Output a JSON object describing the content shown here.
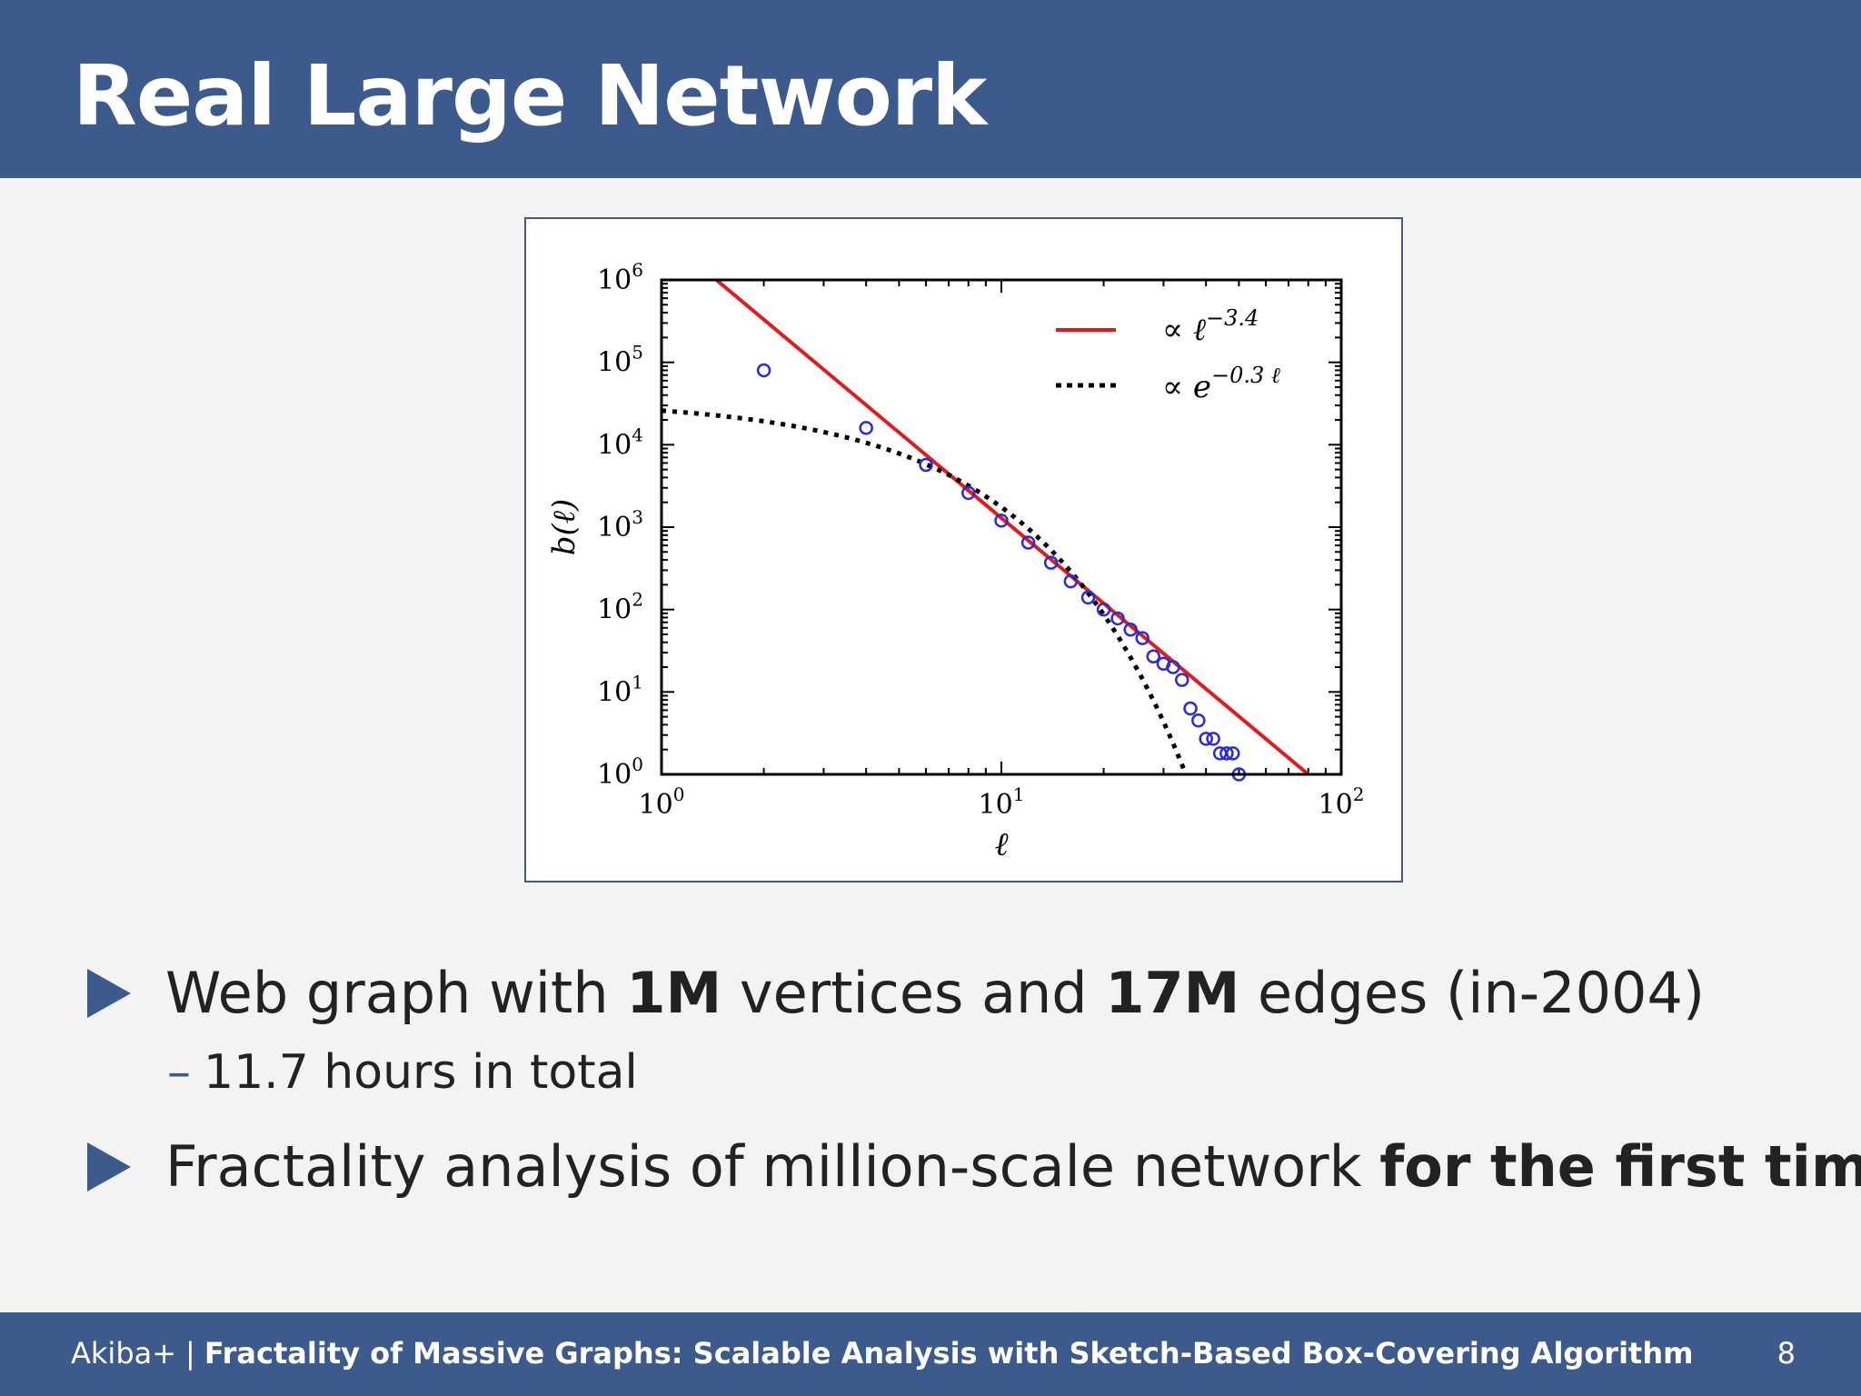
{
  "slide": {
    "title": "Real Large Network",
    "bullets": [
      {
        "segments": [
          {
            "text": "Web graph with ",
            "bold": false
          },
          {
            "text": "1M",
            "bold": true
          },
          {
            "text": " vertices and ",
            "bold": false
          },
          {
            "text": "17M",
            "bold": true
          },
          {
            "text": " edges (in-2004)",
            "bold": false
          }
        ],
        "sub": "11.7 hours in total"
      },
      {
        "segments": [
          {
            "text": "Fractality analysis of million-scale network ",
            "bold": false
          },
          {
            "text": "for the first time",
            "bold": true
          }
        ]
      }
    ],
    "sub_dash": "–"
  },
  "footer": {
    "author": "Akiba+",
    "separator": "|",
    "paper_title": "Fractality of Massive Graphs: Scalable Analysis with Sketch-Based Box-Covering Algorithm",
    "page_number": "8"
  },
  "colors": {
    "header": "#3c5a8c",
    "power_law_line": "#e31a1c",
    "exponential_line": "#000000",
    "markers": "#2b2bd9"
  },
  "chart_data": {
    "type": "scatter",
    "x_scale": "log",
    "y_scale": "log",
    "xlabel": "ℓ",
    "ylabel": "b(ℓ)",
    "xlim": [
      1,
      100
    ],
    "ylim": [
      1,
      1000000
    ],
    "x_ticks": [
      {
        "base": "10",
        "exp": "0",
        "value": 1
      },
      {
        "base": "10",
        "exp": "1",
        "value": 10
      },
      {
        "base": "10",
        "exp": "2",
        "value": 100
      }
    ],
    "y_ticks": [
      {
        "base": "10",
        "exp": "0",
        "value": 1
      },
      {
        "base": "10",
        "exp": "1",
        "value": 10
      },
      {
        "base": "10",
        "exp": "2",
        "value": 100
      },
      {
        "base": "10",
        "exp": "3",
        "value": 1000
      },
      {
        "base": "10",
        "exp": "4",
        "value": 10000
      },
      {
        "base": "10",
        "exp": "5",
        "value": 100000
      },
      {
        "base": "10",
        "exp": "6",
        "value": 1000000
      }
    ],
    "legend_position": "top-right",
    "series": [
      {
        "style": "markers",
        "x": [
          2,
          4,
          6,
          8,
          10,
          12,
          14,
          16,
          18,
          20,
          22,
          24,
          26,
          28,
          30,
          32,
          34,
          36,
          38,
          40,
          42,
          44,
          46,
          48,
          50
        ],
        "y": [
          80000,
          16000,
          5700,
          2600,
          1200,
          650,
          370,
          220,
          140,
          100,
          78,
          57,
          45,
          27,
          22,
          20,
          14,
          6.3,
          4.5,
          2.7,
          2.7,
          1.8,
          1.8,
          1.8,
          1
        ]
      },
      {
        "name": "∝ ℓ^-3.4",
        "name_parts": {
          "prefix": "∝ ℓ",
          "exp": "−3.4"
        },
        "style": "solid",
        "x": [
          1.45,
          80
        ],
        "y": [
          1000000,
          1
        ]
      },
      {
        "name": "∝ e^-0.3ℓ",
        "name_parts": {
          "prefix": "∝ e",
          "exp": "−0.3 ℓ"
        },
        "style": "dotted",
        "formula": "26000 * exp(-0.3 * (x - 1))",
        "x_range": [
          1,
          34.9
        ]
      }
    ]
  }
}
